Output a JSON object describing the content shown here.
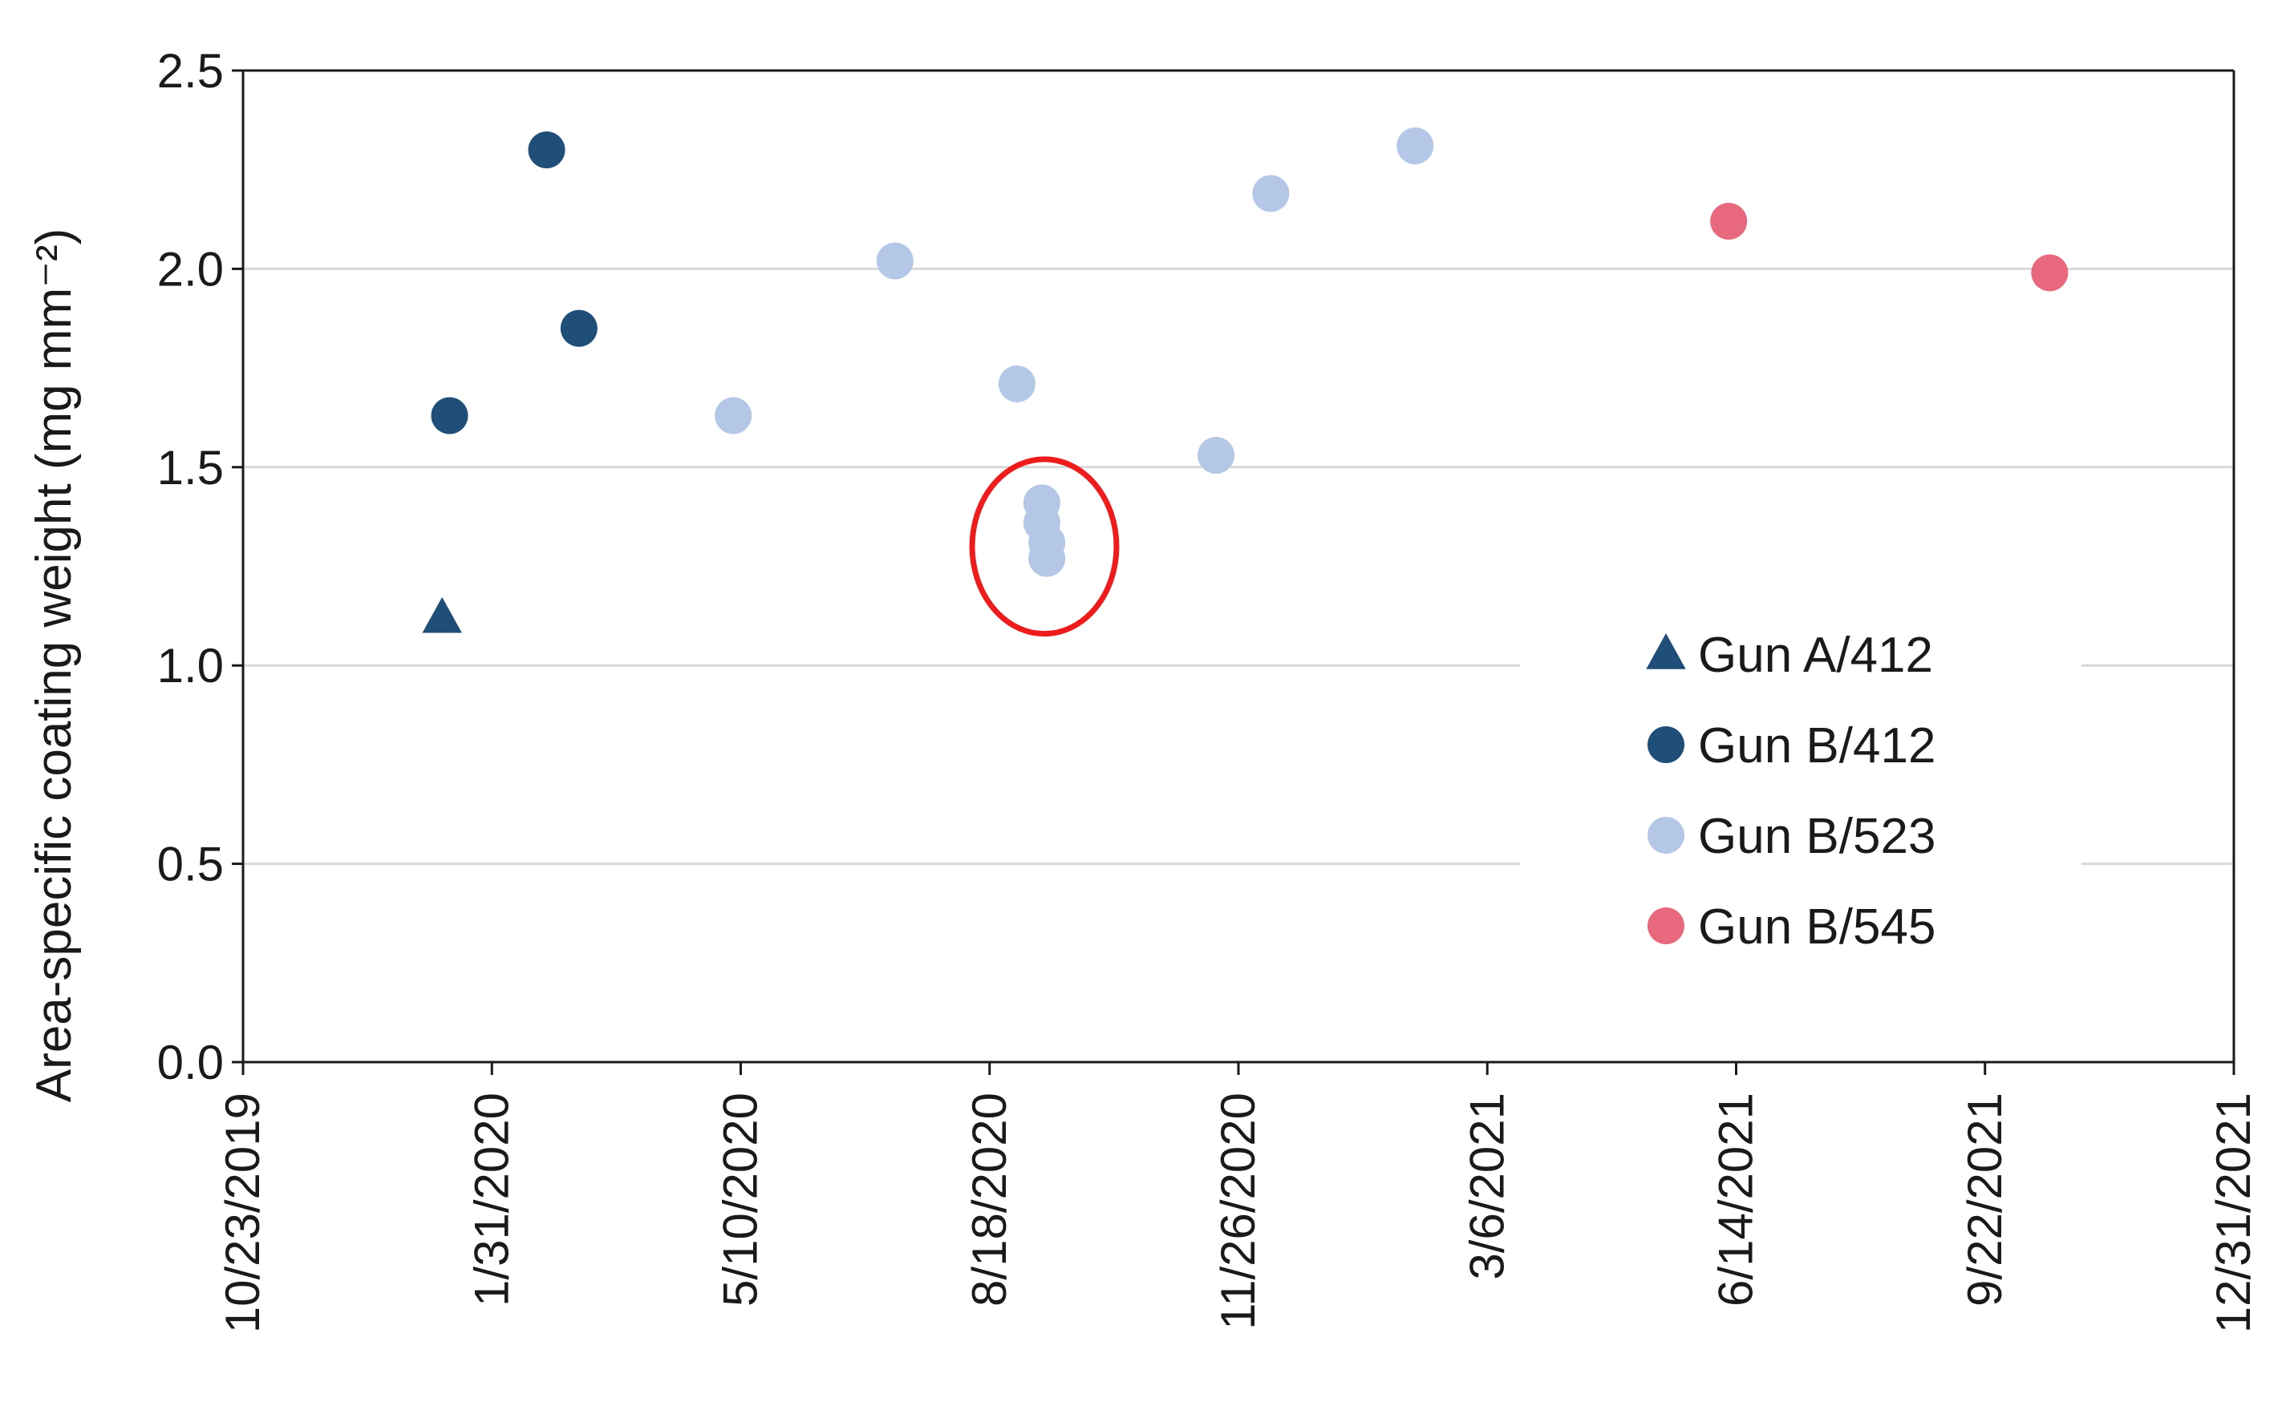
{
  "chart_data": {
    "type": "scatter",
    "ylabel": "Area-specific coating weight (mg mm⁻²)",
    "ylim": [
      0,
      2.5
    ],
    "yticks": [
      0.0,
      0.5,
      1.0,
      1.5,
      2.0,
      2.5
    ],
    "ytick_labels": [
      "0.0",
      "0.5",
      "1.0",
      "1.5",
      "2.0",
      "2.5"
    ],
    "xlim": [
      "2019-10-23",
      "2021-12-31"
    ],
    "xticks": [
      "2019-10-23",
      "2020-01-31",
      "2020-05-10",
      "2020-08-18",
      "2020-11-26",
      "2021-03-06",
      "2021-06-14",
      "2021-09-22",
      "2021-12-31"
    ],
    "xtick_labels": [
      "10/23/2019",
      "1/31/2020",
      "5/10/2020",
      "8/18/2020",
      "11/26/2020",
      "3/6/2021",
      "6/14/2021",
      "9/22/2021",
      "12/31/2021"
    ],
    "grid": true,
    "legend_position": "lower-right",
    "series": [
      {
        "name": "Gun A/412",
        "marker": "triangle",
        "color": "#1f4e79",
        "points": [
          {
            "x": "2020-01-11",
            "y": 1.12
          }
        ]
      },
      {
        "name": "Gun B/412",
        "marker": "circle",
        "color": "#1f4e79",
        "points": [
          {
            "x": "2020-01-14",
            "y": 1.63
          },
          {
            "x": "2020-02-22",
            "y": 2.3
          },
          {
            "x": "2020-03-06",
            "y": 1.85
          }
        ]
      },
      {
        "name": "Gun B/523",
        "marker": "circle",
        "color": "#b4c7e7",
        "points": [
          {
            "x": "2020-05-07",
            "y": 1.63
          },
          {
            "x": "2020-07-11",
            "y": 2.02
          },
          {
            "x": "2020-08-29",
            "y": 1.71
          },
          {
            "x": "2020-09-08",
            "y": 1.41
          },
          {
            "x": "2020-09-08",
            "y": 1.36
          },
          {
            "x": "2020-09-10",
            "y": 1.31
          },
          {
            "x": "2020-09-10",
            "y": 1.27
          },
          {
            "x": "2020-11-17",
            "y": 1.53
          },
          {
            "x": "2020-12-09",
            "y": 2.19
          },
          {
            "x": "2021-02-05",
            "y": 2.31
          }
        ]
      },
      {
        "name": "Gun B/545",
        "marker": "circle",
        "color": "#e8697d",
        "points": [
          {
            "x": "2021-06-11",
            "y": 2.12
          },
          {
            "x": "2021-10-18",
            "y": 1.99
          }
        ]
      }
    ],
    "annotations": [
      {
        "type": "ellipse",
        "color": "#ee1c1c",
        "center": {
          "x": "2020-09-09",
          "y": 1.3
        },
        "x_half_span_days": 29,
        "y_half_span": 0.22
      }
    ]
  },
  "colors": {
    "axis": "#1a1a1a",
    "grid": "#d9d9d9",
    "background": "#ffffff"
  }
}
